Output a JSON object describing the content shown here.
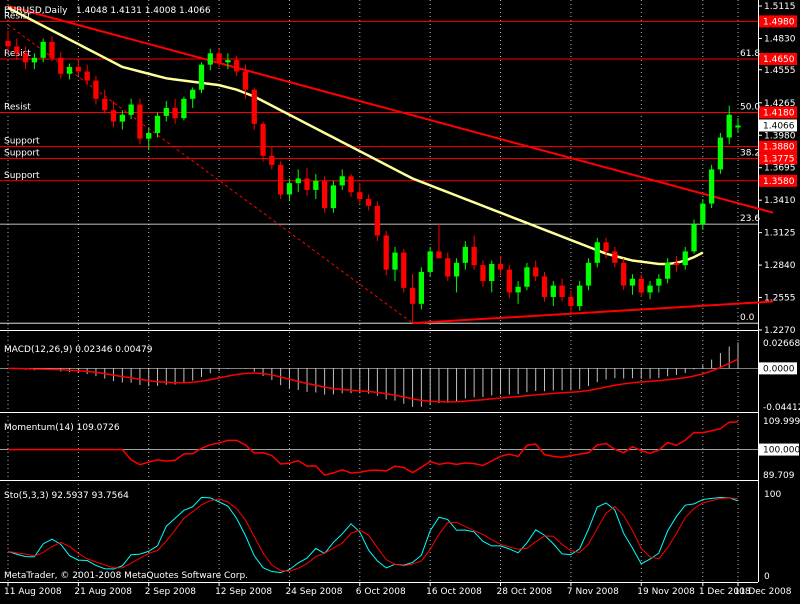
{
  "chart_data": {
    "type": "candlestick",
    "symbol_label": "EURUSD,Daily",
    "ohlc_label": "1.4048 1.4131 1.4008 1.4066",
    "copyright": "MetaTrader, © 2001-2008 MetaQuotes Software Corp.",
    "price_axis": {
      "ylim": [
        1.227,
        1.5115
      ],
      "ticks": [
        "1.5115",
        "1.4830",
        "1.4555",
        "1.4265",
        "1.3980",
        "1.3695",
        "1.3410",
        "1.3125",
        "1.2840",
        "1.2555",
        "1.2270"
      ]
    },
    "date_axis": {
      "labels": [
        "11 Aug 2008",
        "21 Aug 2008",
        "2 Sep 2008",
        "12 Sep 2008",
        "24 Sep 2008",
        "6 Oct 2008",
        "16 Oct 2008",
        "28 Oct 2008",
        "7 Nov 2008",
        "19 Nov 2008",
        "1 Dec 2008",
        "11 Dec 2008"
      ]
    },
    "levels": [
      {
        "label": "Resist",
        "price": 1.498,
        "tag": "1.4980"
      },
      {
        "label": "Resist",
        "price": 1.465,
        "tag": "1.4650",
        "fib": "61.8"
      },
      {
        "label": "Resist",
        "price": 1.418,
        "tag": "1.4180",
        "fib": "50.0"
      },
      {
        "label": "Support",
        "price": 1.388,
        "tag": "1.3880"
      },
      {
        "label": "Support",
        "price": 1.3775,
        "tag": "1.3775",
        "fib": "38.2"
      },
      {
        "label": "Support",
        "price": 1.358,
        "tag": "1.3580"
      }
    ],
    "fib_only": [
      {
        "fib": "23.6",
        "price": 1.32
      },
      {
        "fib": "0.0",
        "price": 1.233
      }
    ],
    "current_price": "1.4066",
    "candles": [
      [
        1.481,
        1.49,
        1.47,
        1.476
      ],
      [
        1.476,
        1.483,
        1.464,
        1.47
      ],
      [
        1.47,
        1.476,
        1.456,
        1.462
      ],
      [
        1.462,
        1.47,
        1.456,
        1.466
      ],
      [
        1.466,
        1.483,
        1.462,
        1.48
      ],
      [
        1.48,
        1.485,
        1.463,
        1.466
      ],
      [
        1.466,
        1.471,
        1.448,
        1.452
      ],
      [
        1.452,
        1.461,
        1.447,
        1.458
      ],
      [
        1.458,
        1.465,
        1.45,
        1.454
      ],
      [
        1.454,
        1.46,
        1.442,
        1.446
      ],
      [
        1.446,
        1.45,
        1.425,
        1.43
      ],
      [
        1.43,
        1.438,
        1.417,
        1.42
      ],
      [
        1.42,
        1.428,
        1.405,
        1.41
      ],
      [
        1.41,
        1.42,
        1.403,
        1.416
      ],
      [
        1.416,
        1.43,
        1.412,
        1.425
      ],
      [
        1.425,
        1.43,
        1.39,
        1.395
      ],
      [
        1.395,
        1.405,
        1.385,
        1.4
      ],
      [
        1.4,
        1.418,
        1.396,
        1.415
      ],
      [
        1.415,
        1.428,
        1.41,
        1.422
      ],
      [
        1.422,
        1.43,
        1.408,
        1.413
      ],
      [
        1.413,
        1.432,
        1.411,
        1.43
      ],
      [
        1.43,
        1.44,
        1.422,
        1.438
      ],
      [
        1.438,
        1.462,
        1.435,
        1.46
      ],
      [
        1.46,
        1.474,
        1.455,
        1.47
      ],
      [
        1.47,
        1.474,
        1.458,
        1.462
      ],
      [
        1.462,
        1.47,
        1.456,
        1.464
      ],
      [
        1.464,
        1.468,
        1.45,
        1.454
      ],
      [
        1.454,
        1.46,
        1.43,
        1.438
      ],
      [
        1.438,
        1.44,
        1.403,
        1.408
      ],
      [
        1.408,
        1.41,
        1.375,
        1.38
      ],
      [
        1.38,
        1.388,
        1.368,
        1.372
      ],
      [
        1.372,
        1.375,
        1.342,
        1.346
      ],
      [
        1.346,
        1.36,
        1.34,
        1.356
      ],
      [
        1.356,
        1.368,
        1.348,
        1.36
      ],
      [
        1.36,
        1.369,
        1.345,
        1.35
      ],
      [
        1.35,
        1.364,
        1.342,
        1.358
      ],
      [
        1.358,
        1.362,
        1.33,
        1.334
      ],
      [
        1.334,
        1.358,
        1.33,
        1.354
      ],
      [
        1.354,
        1.368,
        1.35,
        1.362
      ],
      [
        1.362,
        1.364,
        1.344,
        1.348
      ],
      [
        1.348,
        1.356,
        1.338,
        1.342
      ],
      [
        1.342,
        1.346,
        1.332,
        1.336
      ],
      [
        1.336,
        1.34,
        1.305,
        1.31
      ],
      [
        1.31,
        1.314,
        1.275,
        1.28
      ],
      [
        1.28,
        1.3,
        1.27,
        1.295
      ],
      [
        1.295,
        1.298,
        1.26,
        1.264
      ],
      [
        1.264,
        1.276,
        1.233,
        1.25
      ],
      [
        1.25,
        1.282,
        1.245,
        1.278
      ],
      [
        1.278,
        1.3,
        1.274,
        1.296
      ],
      [
        1.296,
        1.32,
        1.29,
        1.29
      ],
      [
        1.29,
        1.295,
        1.27,
        1.274
      ],
      [
        1.274,
        1.29,
        1.26,
        1.286
      ],
      [
        1.286,
        1.305,
        1.28,
        1.3
      ],
      [
        1.3,
        1.31,
        1.28,
        1.284
      ],
      [
        1.284,
        1.288,
        1.265,
        1.27
      ],
      [
        1.27,
        1.288,
        1.26,
        1.285
      ],
      [
        1.285,
        1.292,
        1.275,
        1.28
      ],
      [
        1.28,
        1.284,
        1.255,
        1.26
      ],
      [
        1.26,
        1.27,
        1.25,
        1.265
      ],
      [
        1.265,
        1.286,
        1.262,
        1.282
      ],
      [
        1.282,
        1.288,
        1.27,
        1.274
      ],
      [
        1.274,
        1.278,
        1.252,
        1.256
      ],
      [
        1.256,
        1.27,
        1.248,
        1.266
      ],
      [
        1.266,
        1.272,
        1.252,
        1.256
      ],
      [
        1.256,
        1.262,
        1.242,
        1.248
      ],
      [
        1.248,
        1.27,
        1.244,
        1.266
      ],
      [
        1.266,
        1.29,
        1.262,
        1.286
      ],
      [
        1.286,
        1.308,
        1.282,
        1.304
      ],
      [
        1.304,
        1.308,
        1.29,
        1.296
      ],
      [
        1.296,
        1.3,
        1.282,
        1.286
      ],
      [
        1.286,
        1.29,
        1.262,
        1.266
      ],
      [
        1.266,
        1.276,
        1.258,
        1.272
      ],
      [
        1.272,
        1.276,
        1.256,
        1.26
      ],
      [
        1.26,
        1.27,
        1.254,
        1.266
      ],
      [
        1.266,
        1.276,
        1.26,
        1.272
      ],
      [
        1.272,
        1.29,
        1.268,
        1.286
      ],
      [
        1.286,
        1.292,
        1.278,
        1.284
      ],
      [
        1.284,
        1.3,
        1.28,
        1.296
      ],
      [
        1.296,
        1.324,
        1.294,
        1.32
      ],
      [
        1.32,
        1.342,
        1.315,
        1.338
      ],
      [
        1.338,
        1.372,
        1.334,
        1.368
      ],
      [
        1.368,
        1.4,
        1.364,
        1.396
      ],
      [
        1.396,
        1.424,
        1.39,
        1.416
      ],
      [
        1.4048,
        1.4131,
        1.4008,
        1.4066
      ]
    ],
    "ma": [
      1.51,
      1.506,
      1.502,
      1.498,
      1.494,
      1.49,
      1.486,
      1.482,
      1.478,
      1.474,
      1.47,
      1.466,
      1.462,
      1.458,
      1.456,
      1.454,
      1.452,
      1.45,
      1.448,
      1.447,
      1.446,
      1.445,
      1.444,
      1.443,
      1.442,
      1.44,
      1.438,
      1.435,
      1.432,
      1.428,
      1.424,
      1.42,
      1.416,
      1.412,
      1.408,
      1.404,
      1.4,
      1.396,
      1.392,
      1.388,
      1.384,
      1.38,
      1.376,
      1.372,
      1.368,
      1.364,
      1.36,
      1.357,
      1.354,
      1.351,
      1.348,
      1.345,
      1.342,
      1.339,
      1.336,
      1.333,
      1.33,
      1.327,
      1.324,
      1.321,
      1.318,
      1.315,
      1.312,
      1.309,
      1.306,
      1.303,
      1.3,
      1.297,
      1.294,
      1.292,
      1.29,
      1.288,
      1.287,
      1.286,
      1.285,
      1.285,
      1.286,
      1.288,
      1.291,
      1.295
    ],
    "trendlines": [
      {
        "from": [
          0,
          1.5115
        ],
        "to": [
          87,
          1.33
        ],
        "color": "#ff0000",
        "style": "solid"
      },
      {
        "from": [
          0,
          1.495
        ],
        "to": [
          46,
          1.233
        ],
        "color": "#ff0000",
        "style": "dashed"
      },
      {
        "from": [
          46,
          1.233
        ],
        "to": [
          87,
          1.252
        ],
        "color": "#ff0000",
        "style": "solid"
      }
    ],
    "macd": {
      "label": "MACD(12,26,9) 0.02346 0.00479",
      "ticks": [
        "0.02668",
        "0.0000",
        "-0.04412"
      ],
      "ylim": [
        -0.04412,
        0.02668
      ]
    },
    "momentum": {
      "label": "Momentum(14) 109.0726",
      "ticks": [
        "109.9998",
        "100.0000",
        "89.709"
      ],
      "ylim": [
        89.709,
        109.9998
      ]
    },
    "stochastic": {
      "label": "Sto(5,3,3) 92.5937 93.7564",
      "ticks": [
        "100",
        "0"
      ],
      "ylim": [
        0,
        100
      ]
    },
    "colors": {
      "bull": "#00ff00",
      "bear": "#ff0000",
      "ma": "#ffff99",
      "grid": "#ffffff",
      "level_line": "#ff0000",
      "signal": "#ff0000",
      "sto_main": "#00ffff",
      "sto_signal": "#ff0000",
      "price_tag_bg": "#ff0000",
      "current_tag_bg": "#ffffff"
    }
  }
}
